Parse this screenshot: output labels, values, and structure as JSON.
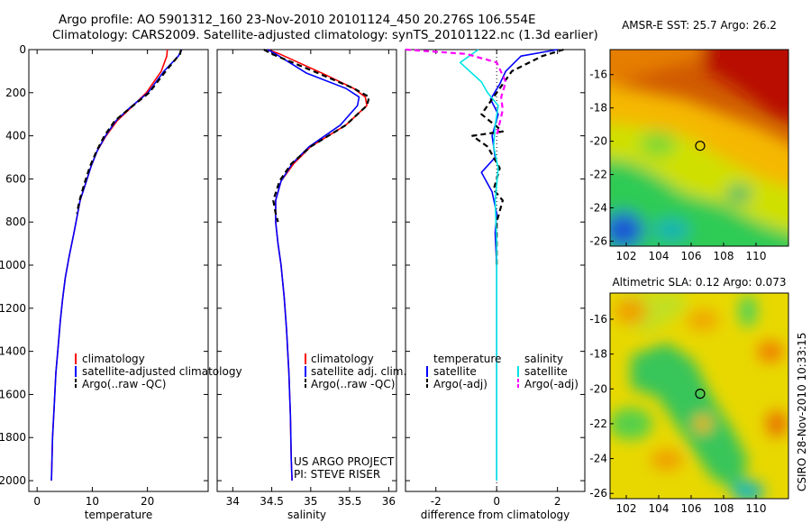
{
  "title": {
    "line1": "Argo profile: AO 5901312_160 23-Nov-2010 20101124_450 20.276S 106.554E",
    "line2": "Climatology: CARS2009. Satellite-adjusted climatology: synTS_20101122.nc (1.3d earlier)"
  },
  "side_label": "CSIRO 28-Nov-2010 10:33:15",
  "credit": {
    "line1": "US ARGO PROJECT",
    "line2": "PI: STEVE RISER"
  },
  "colors": {
    "climatology": "#ff0000",
    "satellite": "#0000ff",
    "argo": "#000000",
    "satellite_sal": "#00e5e5",
    "argo_sal": "#ff00ff"
  },
  "chart_data": [
    {
      "type": "line",
      "title": "",
      "xlabel": "temperature",
      "ylabel": "",
      "xlim": [
        -1.5,
        31
      ],
      "ylim": [
        2050,
        0
      ],
      "x_ticks": [
        0,
        10,
        20
      ],
      "y_ticks": [
        0,
        200,
        400,
        600,
        800,
        1000,
        1200,
        1400,
        1600,
        1800,
        2000
      ],
      "legend": {
        "placement": "lower-right",
        "entries": [
          "climatology",
          "satellite-adjusted climatology",
          "Argo(..raw -QC)"
        ]
      },
      "series": [
        {
          "name": "climatology",
          "color": "#ff0000",
          "dash": "",
          "x": [
            23.6,
            23.5,
            22.5,
            19.8,
            17.0,
            14.5,
            12.5,
            10.9,
            9.8,
            8.8,
            7.8,
            7.2,
            6.6,
            5.8,
            5.1,
            4.6,
            4.2,
            3.8,
            3.4,
            3.1,
            2.8,
            2.6
          ],
          "y": [
            0,
            30,
            100,
            200,
            270,
            330,
            400,
            470,
            540,
            620,
            700,
            780,
            860,
            960,
            1060,
            1160,
            1260,
            1380,
            1500,
            1650,
            1800,
            2000
          ]
        },
        {
          "name": "satellite-adjusted climatology",
          "color": "#0000ff",
          "dash": "",
          "x": [
            26.2,
            25.6,
            23.0,
            20.1,
            16.8,
            14.3,
            12.4,
            10.9,
            9.8,
            8.8,
            7.8,
            7.2,
            6.6,
            5.8,
            5.1,
            4.6,
            4.2,
            3.8,
            3.4,
            3.1,
            2.8,
            2.6
          ],
          "y": [
            0,
            30,
            100,
            200,
            270,
            330,
            400,
            470,
            540,
            620,
            700,
            780,
            860,
            960,
            1060,
            1160,
            1260,
            1380,
            1500,
            1650,
            1800,
            2000
          ]
        },
        {
          "name": "Argo(..raw -QC)",
          "color": "#000000",
          "dash": "6,4",
          "x": [
            26.1,
            25.9,
            23.3,
            20.3,
            16.9,
            14.1,
            12.2,
            10.8,
            9.6,
            8.6,
            7.7,
            7.2
          ],
          "y": [
            0,
            20,
            100,
            200,
            270,
            330,
            400,
            470,
            540,
            620,
            700,
            760
          ]
        }
      ]
    },
    {
      "type": "line",
      "title": "",
      "xlabel": "salinity",
      "ylabel": "",
      "xlim": [
        33.8,
        36.1
      ],
      "ylim": [
        2050,
        0
      ],
      "x_ticks": [
        34,
        34.5,
        35,
        35.5,
        36
      ],
      "legend": {
        "placement": "lower-right",
        "entries": [
          "climatology",
          "satellite adj. clim.",
          "Argo(..raw -QC)"
        ]
      },
      "series": [
        {
          "name": "climatology",
          "color": "#ff0000",
          "dash": "",
          "x": [
            34.45,
            34.6,
            35.15,
            35.55,
            35.7,
            35.72,
            35.45,
            35.0,
            34.78,
            34.62,
            34.55,
            34.55,
            34.58,
            34.62,
            34.66,
            34.69,
            34.72,
            34.74,
            34.75,
            34.76
          ],
          "y": [
            0,
            20,
            110,
            180,
            220,
            260,
            350,
            450,
            530,
            610,
            700,
            800,
            900,
            1000,
            1150,
            1300,
            1500,
            1700,
            1900,
            2000
          ]
        },
        {
          "name": "satellite adj. clim.",
          "color": "#0000ff",
          "dash": "",
          "x": [
            34.45,
            34.55,
            34.95,
            35.45,
            35.62,
            35.6,
            35.38,
            34.98,
            34.76,
            34.62,
            34.55,
            34.55,
            34.58,
            34.62,
            34.66,
            34.69,
            34.72,
            34.74,
            34.75,
            34.76
          ],
          "y": [
            0,
            20,
            110,
            180,
            220,
            260,
            350,
            450,
            530,
            610,
            700,
            800,
            900,
            1000,
            1150,
            1300,
            1500,
            1700,
            1900,
            2000
          ]
        },
        {
          "name": "Argo(..raw -QC)",
          "color": "#000000",
          "dash": "6,4",
          "x": [
            34.4,
            34.5,
            35.1,
            35.55,
            35.75,
            35.72,
            35.45,
            35.0,
            34.75,
            34.6,
            34.52,
            34.55,
            34.58
          ],
          "y": [
            0,
            20,
            110,
            180,
            220,
            260,
            350,
            450,
            530,
            610,
            700,
            760,
            800
          ]
        }
      ]
    },
    {
      "type": "line",
      "title": "",
      "xlabel": "difference from climatology",
      "ylabel": "",
      "xlim": [
        -3,
        2.9
      ],
      "ylim": [
        2050,
        0
      ],
      "x_ticks": [
        -2,
        0,
        2
      ],
      "legend": {
        "placement": "lower-right",
        "entries": [
          "temperature",
          "satellite",
          "Argo(-adj)",
          "salinity",
          "satellite",
          "Argo(-adj)"
        ]
      },
      "series": [
        {
          "name": "temperature satellite",
          "color": "#0000ff",
          "dash": "",
          "x": [
            2.0,
            0.8,
            0.3,
            0.1,
            -0.2,
            0.05,
            -0.15,
            -0.05,
            -0.5,
            -0.15,
            0.0,
            -0.05,
            0.0,
            0.0,
            0.0,
            0.0
          ],
          "y": [
            0,
            30,
            100,
            160,
            230,
            300,
            400,
            500,
            570,
            660,
            760,
            850,
            1000,
            1300,
            1700,
            2000
          ]
        },
        {
          "name": "temperature Argo(-adj)",
          "color": "#000000",
          "dash": "6,4",
          "x": [
            2.2,
            1.5,
            0.5,
            0.0,
            -0.5,
            0.2,
            -0.8,
            -0.3,
            0.1,
            -0.1,
            0.2,
            0.0,
            0.0
          ],
          "y": [
            0,
            30,
            100,
            200,
            300,
            380,
            400,
            450,
            550,
            650,
            700,
            800,
            1000
          ]
        },
        {
          "name": "salinity satellite",
          "color": "#00e5e5",
          "dash": "",
          "x": [
            -0.6,
            -1.2,
            -0.5,
            -0.3,
            0.05,
            -0.05,
            -0.1,
            0.05,
            -0.05,
            0.0,
            0.0
          ],
          "y": [
            0,
            60,
            150,
            200,
            260,
            350,
            450,
            550,
            700,
            900,
            2000
          ]
        },
        {
          "name": "salinity Argo(-adj)",
          "color": "#ff00ff",
          "dash": "6,4",
          "x": [
            -3.0,
            -1.0,
            0.0,
            0.3,
            0.15,
            0.2,
            0.0
          ],
          "y": [
            0,
            20,
            60,
            150,
            220,
            280,
            400
          ]
        }
      ]
    },
    {
      "type": "heatmap",
      "title": "AMSR-E SST: 25.7  Argo: 26.2",
      "x_ticks": [
        102,
        104,
        106,
        108,
        110
      ],
      "y_ticks": [
        -16,
        -18,
        -20,
        -22,
        -24,
        -26
      ],
      "xlim": [
        101,
        112
      ],
      "ylim": [
        -26.3,
        -14.5
      ],
      "marker": {
        "lon": 106.554,
        "lat": -20.276
      }
    },
    {
      "type": "heatmap",
      "title": "Altimetric SLA: 0.12  Argo: 0.073",
      "x_ticks": [
        102,
        104,
        106,
        108,
        110
      ],
      "y_ticks": [
        -16,
        -18,
        -20,
        -22,
        -24,
        -26
      ],
      "xlim": [
        101,
        112
      ],
      "ylim": [
        -26.3,
        -14.5
      ],
      "marker": {
        "lon": 106.554,
        "lat": -20.276
      }
    }
  ]
}
